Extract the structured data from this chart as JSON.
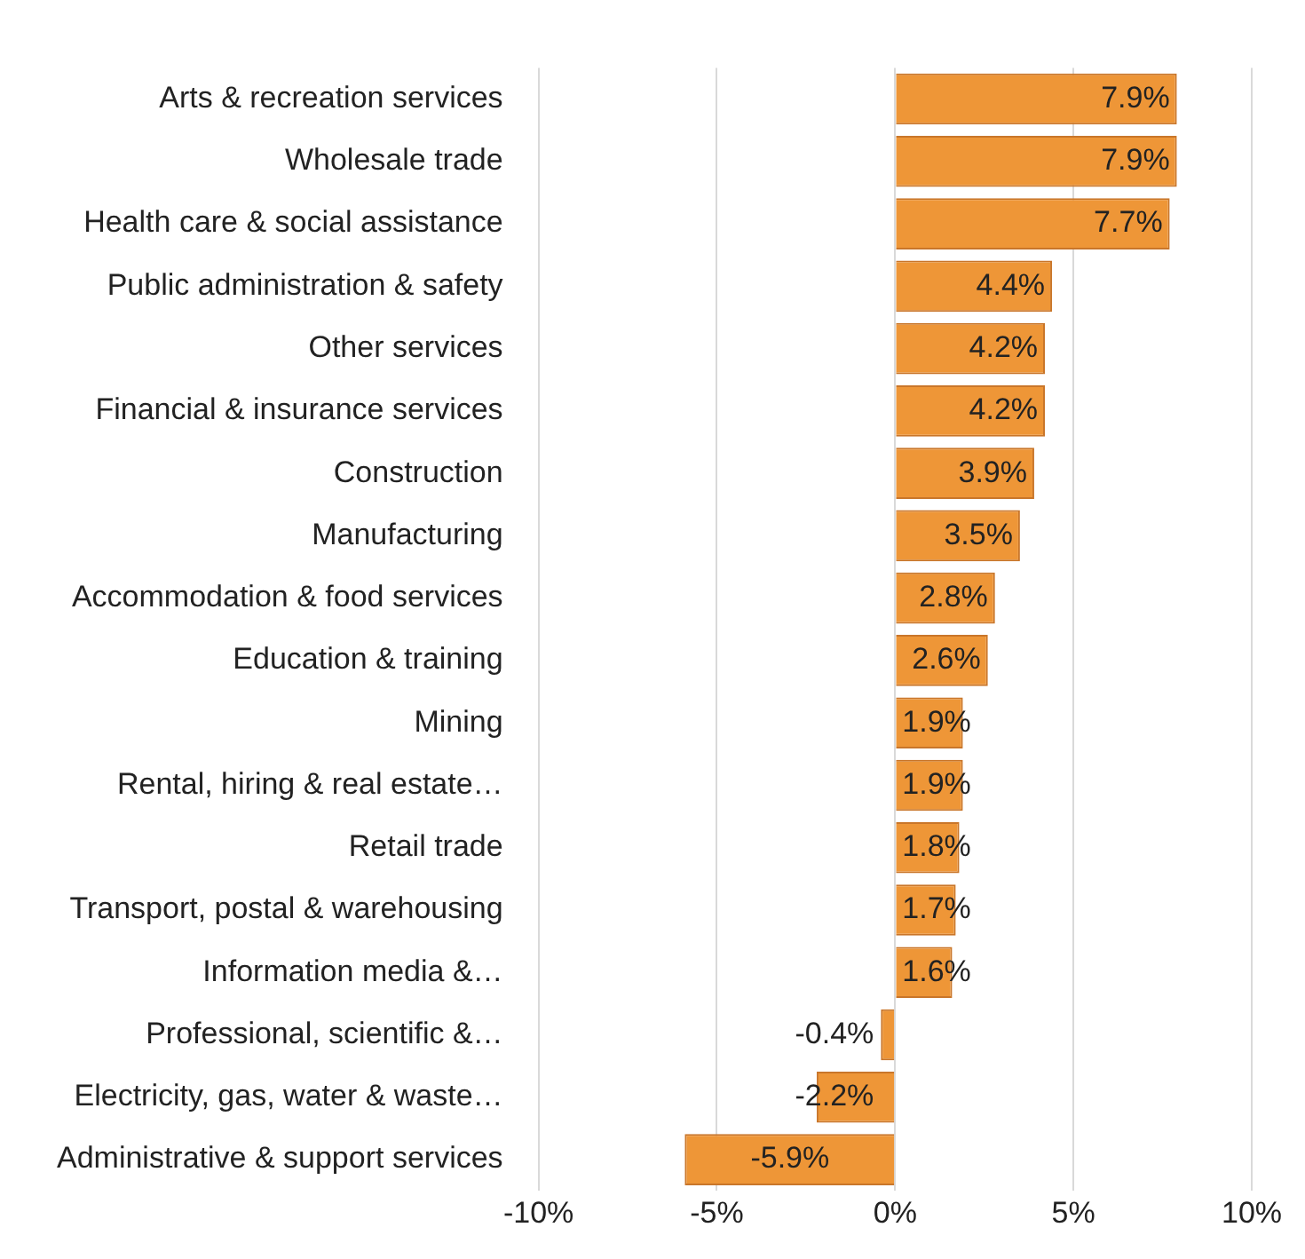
{
  "chart_data": {
    "type": "bar",
    "orientation": "horizontal",
    "categories": [
      "Arts & recreation services",
      "Wholesale trade",
      "Health care & social assistance",
      "Public administration & safety",
      "Other services",
      "Financial & insurance services",
      "Construction",
      "Manufacturing",
      "Accommodation & food services",
      "Education & training",
      "Mining",
      "Rental, hiring & real estate…",
      "Retail trade",
      "Transport, postal & warehousing",
      "Information media &…",
      "Professional, scientific &…",
      "Electricity, gas, water & waste…",
      "Administrative & support services"
    ],
    "values": [
      7.9,
      7.9,
      7.7,
      4.4,
      4.2,
      4.2,
      3.9,
      3.5,
      2.8,
      2.6,
      1.9,
      1.9,
      1.8,
      1.7,
      1.6,
      -0.4,
      -2.2,
      -5.9
    ],
    "value_labels": [
      "7.9%",
      "7.9%",
      "7.7%",
      "4.4%",
      "4.2%",
      "4.2%",
      "3.9%",
      "3.5%",
      "2.8%",
      "2.6%",
      "1.9%",
      "1.9%",
      "1.8%",
      "1.7%",
      "1.6%",
      "-0.4%",
      "-2.2%",
      "-5.9%"
    ],
    "color": "#ee9637",
    "xlim": [
      -10,
      10
    ],
    "xticks": [
      {
        "value": -10,
        "label": "-10%"
      },
      {
        "value": -5,
        "label": "-5%"
      },
      {
        "value": 0,
        "label": "0%"
      },
      {
        "value": 5,
        "label": "5%"
      },
      {
        "value": 10,
        "label": "10%"
      }
    ],
    "grid": "x",
    "legend": false
  }
}
